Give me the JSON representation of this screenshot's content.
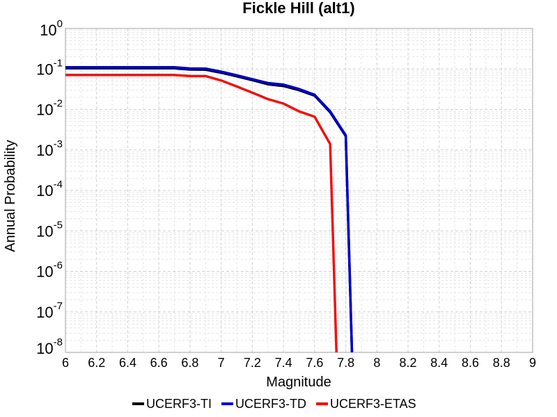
{
  "chart_data": {
    "type": "line",
    "title": "Fickle Hill (alt1)",
    "xlabel": "Magnitude",
    "ylabel": "Annual Probability",
    "xlim": [
      6,
      9
    ],
    "ylim": [
      1e-08,
      1
    ],
    "yscale": "log",
    "grid": true,
    "legend_position": "bottom",
    "x_ticks": [
      "6",
      "6.2",
      "6.4",
      "6.6",
      "6.8",
      "7",
      "7.2",
      "7.4",
      "7.6",
      "7.8",
      "8",
      "8.2",
      "8.4",
      "8.6",
      "8.8",
      "9"
    ],
    "y_ticks": [
      {
        "base": "10",
        "exp": "0"
      },
      {
        "base": "10",
        "exp": "-1"
      },
      {
        "base": "10",
        "exp": "-2"
      },
      {
        "base": "10",
        "exp": "-3"
      },
      {
        "base": "10",
        "exp": "-4"
      },
      {
        "base": "10",
        "exp": "-5"
      },
      {
        "base": "10",
        "exp": "-6"
      },
      {
        "base": "10",
        "exp": "-7"
      },
      {
        "base": "10",
        "exp": "-8"
      }
    ],
    "series": [
      {
        "name": "UCERF3-TI",
        "color": "#000000",
        "x": [
          6.0,
          6.1,
          6.2,
          6.3,
          6.4,
          6.5,
          6.6,
          6.7,
          6.8,
          6.9,
          7.0,
          7.1,
          7.2,
          7.3,
          7.4,
          7.5,
          7.6,
          7.7,
          7.8,
          7.84
        ],
        "y": [
          0.104,
          0.104,
          0.104,
          0.104,
          0.104,
          0.104,
          0.104,
          0.104,
          0.097,
          0.096,
          0.081,
          0.066,
          0.053,
          0.042,
          0.038,
          0.03,
          0.022,
          0.0085,
          0.0022,
          1e-08
        ]
      },
      {
        "name": "UCERF3-TD",
        "color": "#0000cc",
        "x": [
          6.0,
          6.1,
          6.2,
          6.3,
          6.4,
          6.5,
          6.6,
          6.7,
          6.8,
          6.9,
          7.0,
          7.1,
          7.2,
          7.3,
          7.4,
          7.5,
          7.6,
          7.7,
          7.8,
          7.84
        ],
        "y": [
          0.11,
          0.11,
          0.11,
          0.11,
          0.11,
          0.11,
          0.11,
          0.11,
          0.103,
          0.102,
          0.086,
          0.07,
          0.056,
          0.045,
          0.041,
          0.032,
          0.023,
          0.009,
          0.0023,
          1e-08
        ]
      },
      {
        "name": "UCERF3-ETAS",
        "color": "#ee1111",
        "x": [
          6.0,
          6.1,
          6.2,
          6.3,
          6.4,
          6.5,
          6.6,
          6.7,
          6.8,
          6.9,
          7.0,
          7.1,
          7.2,
          7.3,
          7.4,
          7.5,
          7.6,
          7.7,
          7.74
        ],
        "y": [
          0.071,
          0.071,
          0.071,
          0.071,
          0.071,
          0.071,
          0.071,
          0.071,
          0.067,
          0.067,
          0.052,
          0.037,
          0.026,
          0.018,
          0.014,
          0.009,
          0.0066,
          0.0014,
          1e-08
        ]
      }
    ]
  }
}
